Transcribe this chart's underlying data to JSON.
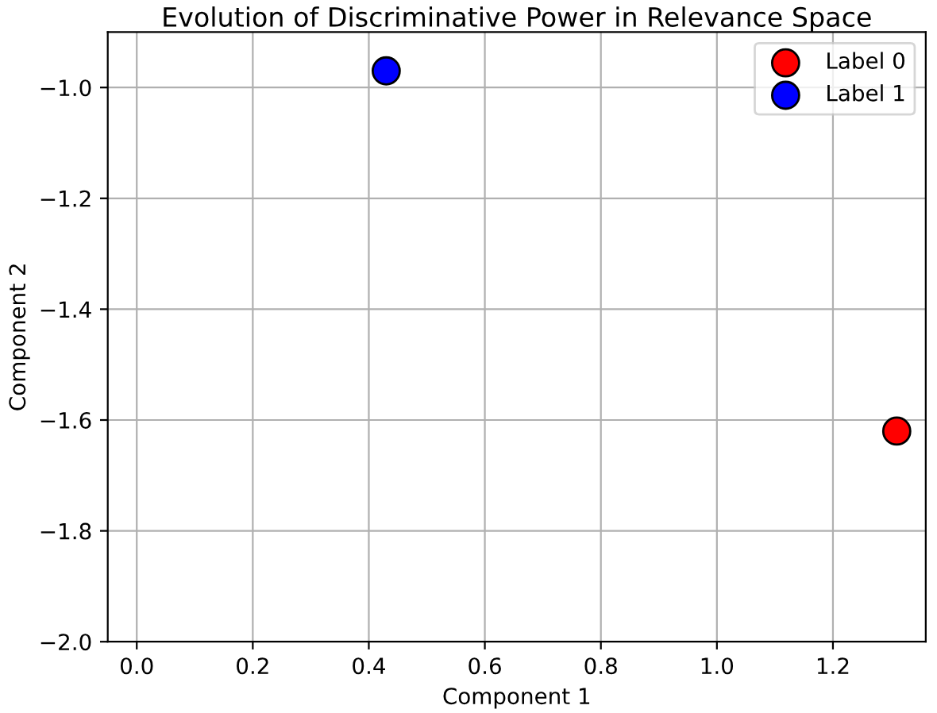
{
  "chart_data": {
    "type": "scatter",
    "title": "Evolution of Discriminative Power in Relevance Space",
    "xlabel": "Component 1",
    "ylabel": "Component 2",
    "series": [
      {
        "name": "Label 0",
        "color": "#ff0000",
        "x": [
          1.31
        ],
        "values": [
          -1.62
        ]
      },
      {
        "name": "Label 1",
        "color": "#0000ff",
        "x": [
          0.43
        ],
        "values": [
          -0.97
        ]
      }
    ],
    "xlim": [
      -0.05,
      1.36
    ],
    "ylim": [
      -2.0,
      -0.9
    ],
    "xticks": [
      {
        "value": 0.0,
        "label": "0.0"
      },
      0.2,
      0.4,
      0.6,
      0.8,
      {
        "value": 1.0,
        "label": "1.0"
      },
      1.2
    ],
    "yticks": [
      {
        "value": -2.0,
        "label": "−2.0"
      },
      {
        "value": -1.8,
        "label": "−1.8"
      },
      {
        "value": -1.6,
        "label": "−1.6"
      },
      {
        "value": -1.4,
        "label": "−1.4"
      },
      {
        "value": -1.2,
        "label": "−1.2"
      },
      {
        "value": -1.0,
        "label": "−1.0"
      }
    ],
    "grid": true,
    "legend": "top right",
    "marker": "circle"
  }
}
